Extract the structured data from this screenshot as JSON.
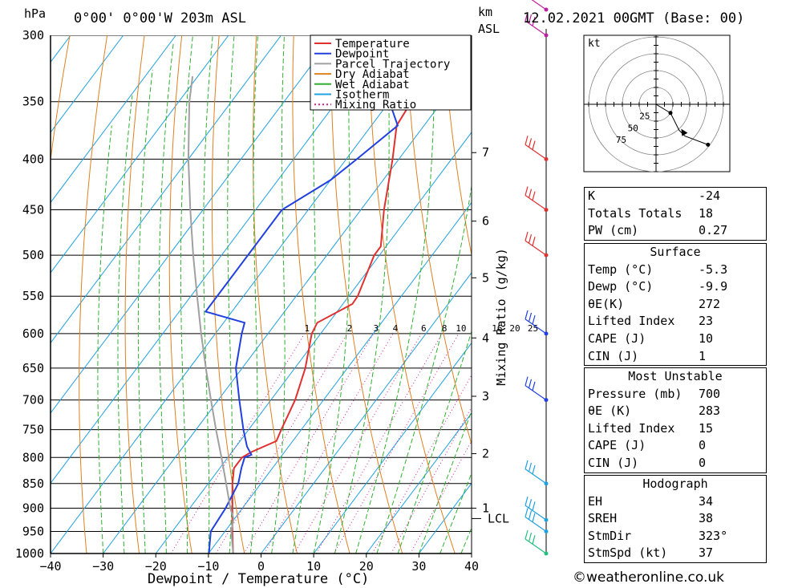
{
  "header": {
    "location": "0°00' 0°00'W 203m ASL",
    "datetime": "12.02.2021 00GMT (Base: 00)",
    "hpa_label": "hPa",
    "km_label": "km",
    "asl_label": "ASL"
  },
  "chart_data": {
    "type": "skew-t",
    "xlabel": "Dewpoint / Temperature (°C)",
    "ylabel": "hPa",
    "right_axis_label": "Mixing Ratio (g/kg)",
    "xlim": [
      -40,
      40
    ],
    "ylim": [
      1000,
      300
    ],
    "pressure_ticks": [
      300,
      350,
      400,
      450,
      500,
      550,
      600,
      650,
      700,
      750,
      800,
      850,
      900,
      950,
      1000
    ],
    "temp_ticks": [
      -40,
      -30,
      -20,
      -10,
      0,
      10,
      20,
      30,
      40
    ],
    "km_ticks": [
      {
        "km": 1,
        "p": 900
      },
      {
        "km": 2,
        "p": 793
      },
      {
        "km": 3,
        "p": 694
      },
      {
        "km": 4,
        "p": 606
      },
      {
        "km": 5,
        "p": 527
      },
      {
        "km": 6,
        "p": 462
      },
      {
        "km": 7,
        "p": 394
      }
    ],
    "lcl": {
      "label": "LCL",
      "p": 922
    },
    "mixing_ratio_labels": [
      "1",
      "2",
      "3",
      "4",
      "6",
      "8",
      "10",
      "16",
      "20",
      "25"
    ],
    "mixing_ratio_values": [
      1,
      2,
      3,
      4,
      6,
      8,
      10,
      16,
      20,
      25
    ],
    "legend": [
      {
        "name": "Temperature",
        "color": "#e03030",
        "style": "solid"
      },
      {
        "name": "Dewpoint",
        "color": "#2040e0",
        "style": "solid"
      },
      {
        "name": "Parcel Trajectory",
        "color": "#a0a0a0",
        "style": "solid"
      },
      {
        "name": "Dry Adiabat",
        "color": "#e08020",
        "style": "solid"
      },
      {
        "name": "Wet Adiabat",
        "color": "#30b030",
        "style": "solid"
      },
      {
        "name": "Isotherm",
        "color": "#20a0e0",
        "style": "solid"
      },
      {
        "name": "Mixing Ratio",
        "color": "#d0208c",
        "style": "dotted"
      }
    ],
    "series": [
      {
        "name": "Temperature",
        "points": [
          [
            1000,
            -5.3
          ],
          [
            950,
            -8.6
          ],
          [
            900,
            -11.9
          ],
          [
            850,
            -15.4
          ],
          [
            820,
            -17.3
          ],
          [
            800,
            -17.3
          ],
          [
            790,
            -16.3
          ],
          [
            770,
            -13.1
          ],
          [
            750,
            -13.8
          ],
          [
            700,
            -15.4
          ],
          [
            650,
            -18.0
          ],
          [
            600,
            -21.7
          ],
          [
            585,
            -22.2
          ],
          [
            560,
            -18.2
          ],
          [
            550,
            -18.3
          ],
          [
            500,
            -21.0
          ],
          [
            490,
            -21.0
          ],
          [
            450,
            -25.6
          ],
          [
            400,
            -31.2
          ],
          [
            370,
            -35.2
          ],
          [
            350,
            -35.8
          ],
          [
            300,
            -40.3
          ]
        ]
      },
      {
        "name": "Dewpoint",
        "points": [
          [
            1000,
            -9.9
          ],
          [
            950,
            -12.7
          ],
          [
            900,
            -13.2
          ],
          [
            850,
            -14.3
          ],
          [
            820,
            -15.9
          ],
          [
            800,
            -16.8
          ],
          [
            795,
            -15.9
          ],
          [
            780,
            -17.9
          ],
          [
            750,
            -21.0
          ],
          [
            700,
            -26.0
          ],
          [
            650,
            -31.2
          ],
          [
            600,
            -35.0
          ],
          [
            585,
            -36.0
          ],
          [
            570,
            -45.0
          ],
          [
            450,
            -45.0
          ],
          [
            420,
            -40.0
          ],
          [
            400,
            -38.0
          ],
          [
            370,
            -35.0
          ],
          [
            350,
            -40.0
          ],
          [
            300,
            -46.0
          ]
        ]
      },
      {
        "name": "Parcel Trajectory",
        "points": [
          [
            1000,
            -5.3
          ],
          [
            950,
            -8.8
          ],
          [
            922,
            -10.2
          ],
          [
            900,
            -12.3
          ],
          [
            850,
            -16.6
          ],
          [
            800,
            -21.2
          ],
          [
            750,
            -26.2
          ],
          [
            700,
            -31.4
          ],
          [
            650,
            -36.9
          ],
          [
            600,
            -42.7
          ],
          [
            550,
            -48.8
          ],
          [
            500,
            -55.4
          ],
          [
            450,
            -62.4
          ],
          [
            400,
            -70.0
          ],
          [
            350,
            -78.0
          ],
          [
            330,
            -81.0
          ]
        ]
      }
    ],
    "wind_barbs": [
      {
        "p": 1000,
        "color": "#20c080"
      },
      {
        "p": 950,
        "color": "#20a0e0"
      },
      {
        "p": 925,
        "color": "#20a0e0"
      },
      {
        "p": 850,
        "color": "#20a0e0"
      },
      {
        "p": 700,
        "color": "#2040e0"
      },
      {
        "p": 600,
        "color": "#2040e0"
      },
      {
        "p": 500,
        "color": "#e03030"
      },
      {
        "p": 450,
        "color": "#e03030"
      },
      {
        "p": 400,
        "color": "#e03030"
      },
      {
        "p": 300,
        "color": "#c020a0"
      },
      {
        "p": 280,
        "color": "#c020a0"
      }
    ],
    "hodograph": {
      "unit_label": "kt",
      "ring_labels": [
        "25",
        "50",
        "75"
      ],
      "points": [
        [
          0.5,
          -0.3
        ],
        [
          0.8,
          -0.9
        ],
        [
          1.0,
          -1.1
        ],
        [
          1.8,
          -1.4
        ]
      ]
    }
  },
  "indices": {
    "top": [
      {
        "label": "K",
        "value": "-24"
      },
      {
        "label": "Totals Totals",
        "value": "18"
      },
      {
        "label": "PW (cm)",
        "value": "0.27"
      }
    ],
    "surface_title": "Surface",
    "surface": [
      {
        "label": "Temp (°C)",
        "value": "-5.3"
      },
      {
        "label": "Dewp (°C)",
        "value": "-9.9"
      },
      {
        "label": "θE(K)",
        "value": "272"
      },
      {
        "label": "Lifted Index",
        "value": "23"
      },
      {
        "label": "CAPE (J)",
        "value": "10"
      },
      {
        "label": "CIN (J)",
        "value": "1"
      }
    ],
    "mu_title": "Most Unstable",
    "mu": [
      {
        "label": "Pressure (mb)",
        "value": "700"
      },
      {
        "label": "θE (K)",
        "value": "283"
      },
      {
        "label": "Lifted Index",
        "value": "15"
      },
      {
        "label": "CAPE (J)",
        "value": "0"
      },
      {
        "label": "CIN (J)",
        "value": "0"
      }
    ],
    "hodo_title": "Hodograph",
    "hodo": [
      {
        "label": "EH",
        "value": "34"
      },
      {
        "label": "SREH",
        "value": "38"
      },
      {
        "label": "StmDir",
        "value": "323°"
      },
      {
        "label": "StmSpd (kt)",
        "value": "37"
      }
    ]
  },
  "footer": {
    "copyright": "©weatheronline.co.uk"
  }
}
